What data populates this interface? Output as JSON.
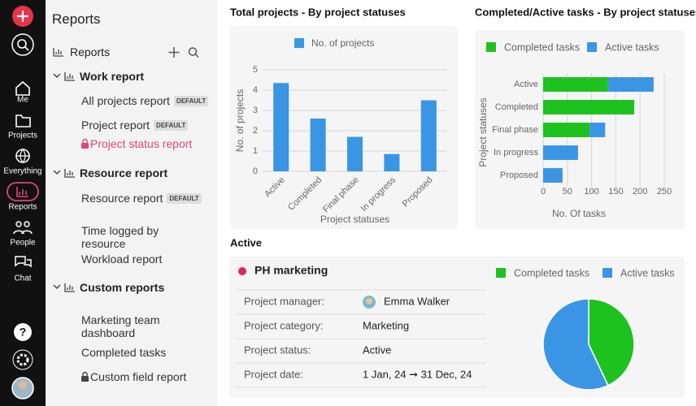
{
  "nav": {
    "items": [
      "Me",
      "Projects",
      "Everything",
      "Reports",
      "People",
      "Chat"
    ]
  },
  "sidebar": {
    "title": "Reports",
    "section": "Reports",
    "groups": [
      {
        "title": "Work report",
        "items": [
          {
            "label": "All projects report",
            "badge": "DEFAULT"
          },
          {
            "label": "Project report",
            "badge": "DEFAULT"
          },
          {
            "label": "Project status report"
          }
        ]
      },
      {
        "title": "Resource report",
        "items": [
          {
            "label": "Resource report",
            "badge": "DEFAULT"
          },
          {
            "label": "Time logged by resource"
          },
          {
            "label": "Workload report"
          }
        ]
      },
      {
        "title": "Custom reports",
        "items": [
          {
            "label": "Marketing team dashboard"
          },
          {
            "label": "Completed tasks"
          },
          {
            "label": "Custom field report"
          }
        ]
      }
    ]
  },
  "chart_data": [
    {
      "type": "bar",
      "title": "Total projects - By project statuses",
      "categories": [
        "Active",
        "Completed",
        "Final phase",
        "In progress",
        "Proposed"
      ],
      "series": [
        {
          "name": "No. of projects",
          "color": "#3a96e5",
          "values": [
            4.35,
            2.6,
            1.7,
            0.85,
            3.5
          ]
        }
      ],
      "ylim": [
        0,
        5
      ],
      "yticks": [
        0,
        1,
        2,
        3,
        4,
        5
      ],
      "xlabel": "Project statuses",
      "ylabel": "No. of projects",
      "grid": true
    },
    {
      "type": "bar",
      "orientation": "horizontal",
      "stacked": true,
      "title": "Completed/Active tasks - By project statuses",
      "categories": [
        "Active",
        "Completed",
        "Final phase",
        "In progress",
        "Proposed"
      ],
      "series": [
        {
          "name": "Completed tasks",
          "color": "#1ec21e",
          "values": [
            134,
            188,
            96,
            0,
            0
          ]
        },
        {
          "name": "Active tasks",
          "color": "#3a96e5",
          "values": [
            94,
            0,
            32,
            72,
            40
          ]
        }
      ],
      "xlim": [
        0,
        250
      ],
      "xticks": [
        0,
        50,
        100,
        150,
        200,
        250
      ],
      "xlabel": "No. Of tasks",
      "ylabel": "Project statuses",
      "grid": true
    },
    {
      "type": "pie",
      "categories": [
        "Completed tasks",
        "Active tasks"
      ],
      "values": [
        43,
        57
      ],
      "colors": [
        "#1ec21e",
        "#3a96e5"
      ]
    }
  ],
  "details": {
    "heading": "Active",
    "project": "PH marketing",
    "rows": [
      {
        "label": "Project manager:",
        "value": "Emma Walker"
      },
      {
        "label": "Project category:",
        "value": "Marketing"
      },
      {
        "label": "Project status:",
        "value": "Active"
      },
      {
        "label": "Project date:",
        "value": "1 Jan, 24 ➞ 31 Dec, 24"
      }
    ]
  }
}
